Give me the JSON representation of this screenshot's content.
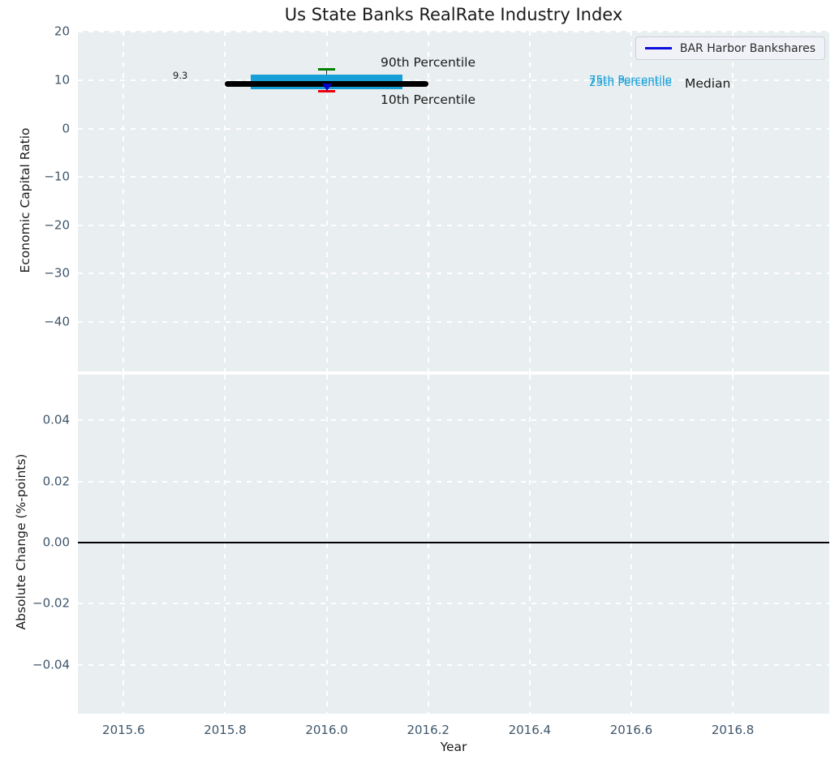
{
  "title": "Us State Banks RealRate Industry Index",
  "legend": {
    "label": "BAR Harbor Bankshares"
  },
  "xaxis": {
    "label": "Year",
    "ticks": [
      {
        "value": 2015.6,
        "label": "2015.6"
      },
      {
        "value": 2015.8,
        "label": "2015.8"
      },
      {
        "value": 2016.0,
        "label": "2016.0"
      },
      {
        "value": 2016.2,
        "label": "2016.2"
      },
      {
        "value": 2016.4,
        "label": "2016.4"
      },
      {
        "value": 2016.6,
        "label": "2016.6"
      },
      {
        "value": 2016.8,
        "label": "2016.8"
      }
    ]
  },
  "top_chart": {
    "ylabel": "Economic Capital Ratio",
    "yticks": [
      {
        "value": 20,
        "label": "20"
      },
      {
        "value": 10,
        "label": "10"
      },
      {
        "value": 0,
        "label": "0"
      },
      {
        "value": -10,
        "label": "−10"
      },
      {
        "value": -20,
        "label": "−20"
      },
      {
        "value": -30,
        "label": "−30"
      },
      {
        "value": -40,
        "label": "−40"
      }
    ],
    "annotations": {
      "median_value": "9.3",
      "p90": "90th Percentile",
      "p10": "10th Percentile",
      "p75": "75th Percentile",
      "p25": "25th Percentile",
      "median": "Median"
    }
  },
  "bottom_chart": {
    "ylabel": "Absolute Change (%-points)",
    "yticks": [
      {
        "value": 0.04,
        "label": "0.04"
      },
      {
        "value": 0.02,
        "label": "0.02"
      },
      {
        "value": 0.0,
        "label": "0.00"
      },
      {
        "value": -0.02,
        "label": "−0.02"
      },
      {
        "value": -0.04,
        "label": "−0.04"
      }
    ]
  },
  "colors": {
    "plot_bg": "#e9eef0",
    "grid": "#ffffff",
    "tick": "#3f566b",
    "text": "#1a1a1a",
    "iqr_box": "#17a0d8",
    "median_line": "#000000",
    "p90": "#008000",
    "p10": "#e8000b",
    "company": "#0000cd",
    "legend_line": "#0d0ddd",
    "zero_line": "#000000"
  },
  "chart_data": [
    {
      "type": "box-timeline",
      "title": "Us State Banks RealRate Industry Index",
      "xlabel": "Year",
      "ylabel": "Economic Capital Ratio",
      "xlim": [
        2015.51,
        2016.99
      ],
      "ylim": [
        -50.2,
        20.2
      ],
      "xticks": [
        2015.6,
        2015.8,
        2016.0,
        2016.2,
        2016.4,
        2016.6,
        2016.8
      ],
      "yticks": [
        20,
        10,
        0,
        -10,
        -20,
        -30,
        -40
      ],
      "grid": "white-dashed",
      "legend": [
        "BAR Harbor Bankshares"
      ],
      "legend_position": "upper right",
      "industry": {
        "median": {
          "y": 9.3,
          "x_start": 2015.8,
          "x_end": 2016.2,
          "data_label": "9.3"
        },
        "iqr_box": {
          "p25": 8.1,
          "p75": 11.2,
          "x_start": 2015.85,
          "x_end": 2016.15
        },
        "whisker": {
          "x": 2016.0,
          "p10": 7.7,
          "p90": 12.2
        }
      },
      "company_point": {
        "name": "BAR Harbor Bankshares",
        "x": 2016.0,
        "y": 8.7,
        "marker": "triangle-down"
      }
    },
    {
      "type": "line",
      "xlabel": "Year",
      "ylabel": "Absolute Change (%-points)",
      "xlim": [
        2015.51,
        2016.99
      ],
      "ylim": [
        -0.056,
        0.055
      ],
      "xticks": [
        2015.6,
        2015.8,
        2016.0,
        2016.2,
        2016.4,
        2016.6,
        2016.8
      ],
      "yticks": [
        0.04,
        0.02,
        0.0,
        -0.02,
        -0.04
      ],
      "grid": "white-dashed",
      "series": [
        {
          "name": "zero-baseline",
          "type": "hline",
          "y": 0.0,
          "color": "#000000"
        }
      ]
    }
  ]
}
